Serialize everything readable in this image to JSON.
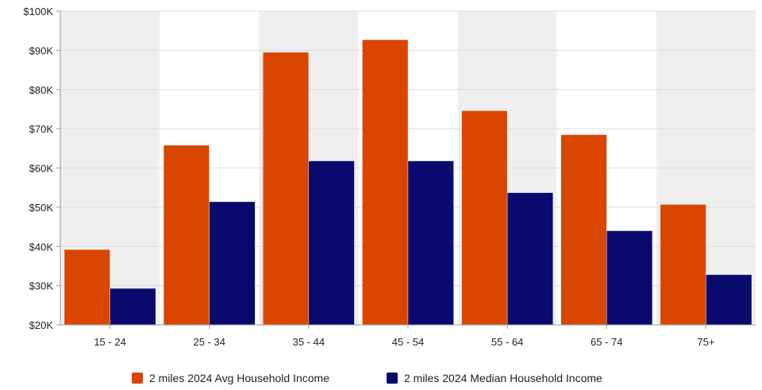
{
  "chart_data": {
    "type": "bar",
    "title": "",
    "xlabel": "",
    "ylabel": "",
    "categories": [
      "15 - 24",
      "25 - 34",
      "35 - 44",
      "45 - 54",
      "55 - 64",
      "65 - 74",
      "75+"
    ],
    "series": [
      {
        "name": "2 miles 2024 Avg Household Income",
        "color": "#d94600",
        "values": [
          39200,
          65800,
          89500,
          92700,
          74600,
          68500,
          50700
        ]
      },
      {
        "name": "2 miles 2024 Median Household Income",
        "color": "#0a0a6e",
        "values": [
          29300,
          51400,
          61800,
          61800,
          53700,
          44000,
          32800
        ]
      }
    ],
    "ylim": [
      20000,
      100000
    ],
    "yticks": [
      20000,
      30000,
      40000,
      50000,
      60000,
      70000,
      80000,
      90000,
      100000
    ],
    "ytick_labels": [
      "$20K",
      "$30K",
      "$40K",
      "$50K",
      "$60K",
      "$70K",
      "$80K",
      "$90K",
      "$100K"
    ],
    "grid": true,
    "band_colors": [
      "#efefef",
      "#ffffff"
    ],
    "legend_position": "bottom-center"
  }
}
